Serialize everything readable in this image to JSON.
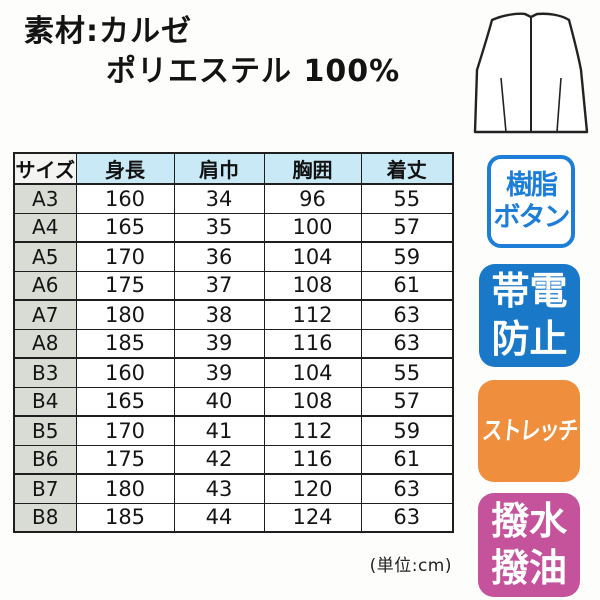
{
  "material": {
    "line1": "素材:カルゼ",
    "line2": "ポリエステル 100%"
  },
  "illustration": {
    "name": "vest-back-line-drawing"
  },
  "size_table": {
    "columns": [
      "サイズ",
      "身長",
      "肩巾",
      "胸囲",
      "着丈"
    ],
    "rows": [
      [
        "A3",
        "160",
        "34",
        "96",
        "55"
      ],
      [
        "A4",
        "165",
        "35",
        "100",
        "57"
      ],
      [
        "A5",
        "170",
        "36",
        "104",
        "59"
      ],
      [
        "A6",
        "175",
        "37",
        "108",
        "61"
      ],
      [
        "A7",
        "180",
        "38",
        "112",
        "63"
      ],
      [
        "A8",
        "185",
        "39",
        "116",
        "63"
      ],
      [
        "B3",
        "160",
        "39",
        "104",
        "55"
      ],
      [
        "B4",
        "165",
        "40",
        "108",
        "57"
      ],
      [
        "B5",
        "170",
        "41",
        "112",
        "59"
      ],
      [
        "B6",
        "175",
        "42",
        "116",
        "61"
      ],
      [
        "B7",
        "180",
        "43",
        "120",
        "63"
      ],
      [
        "B8",
        "185",
        "44",
        "124",
        "63"
      ]
    ],
    "unit_note": "(単位:cm)"
  },
  "badges": [
    {
      "id": "resin-button",
      "lines": [
        "樹脂",
        "ボタン"
      ],
      "style": "outline",
      "color": "#1d7ed8"
    },
    {
      "id": "anti-static",
      "lines": [
        "帯電",
        "防止"
      ],
      "style": "filled",
      "color": "#1a78c8"
    },
    {
      "id": "stretch",
      "lines": [
        "ストレッチ"
      ],
      "style": "filled",
      "color": "#ef8e3c"
    },
    {
      "id": "water-oil-repellent",
      "lines": [
        "撥水",
        "撥油"
      ],
      "style": "filled",
      "color": "#c4539b"
    }
  ],
  "colors": {
    "table_header_bg": "#c9e9f6",
    "size_col_bg": "#d9dbd5",
    "line_color": "#1e1e1e"
  }
}
